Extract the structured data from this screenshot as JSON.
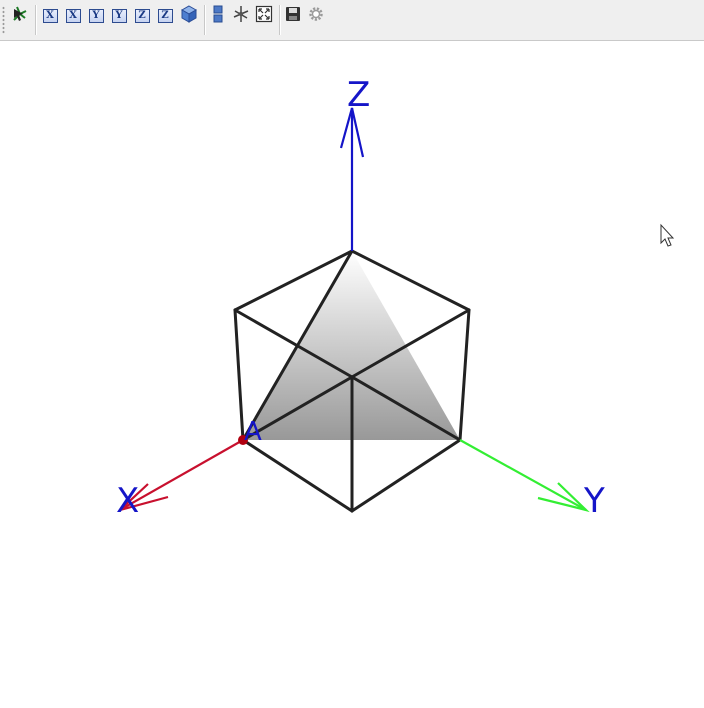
{
  "toolbar": {
    "buttons": [
      {
        "icon": "move-graphics-view-icon",
        "label": ""
      },
      {
        "icon": "view-from-x-icon",
        "label": "X"
      },
      {
        "icon": "view-from-x-reverse-icon",
        "label": "X"
      },
      {
        "icon": "view-from-y-icon",
        "label": "Y"
      },
      {
        "icon": "view-from-y-reverse-icon",
        "label": "Y"
      },
      {
        "icon": "view-from-z-icon",
        "label": "Z"
      },
      {
        "icon": "view-from-z-reverse-icon",
        "label": "Z"
      },
      {
        "icon": "standard-view-cube-icon",
        "label": ""
      },
      {
        "icon": "show-clipping-icon",
        "label": ""
      },
      {
        "icon": "rotate-view-icon",
        "label": ""
      },
      {
        "icon": "zoom-to-fit-icon",
        "label": ""
      },
      {
        "icon": "save-icon",
        "label": ""
      },
      {
        "icon": "settings-gear-icon",
        "label": ""
      }
    ]
  },
  "scene": {
    "axes": {
      "x_label": "X",
      "y_label": "Y",
      "z_label": "Z"
    },
    "point": {
      "label": "A"
    },
    "colors": {
      "x_axis": "#c8102e",
      "y_axis": "#33ee33",
      "z_axis": "#1414c8",
      "labels": "#1515c8",
      "edges": "#222222",
      "point": "#b00010"
    }
  }
}
